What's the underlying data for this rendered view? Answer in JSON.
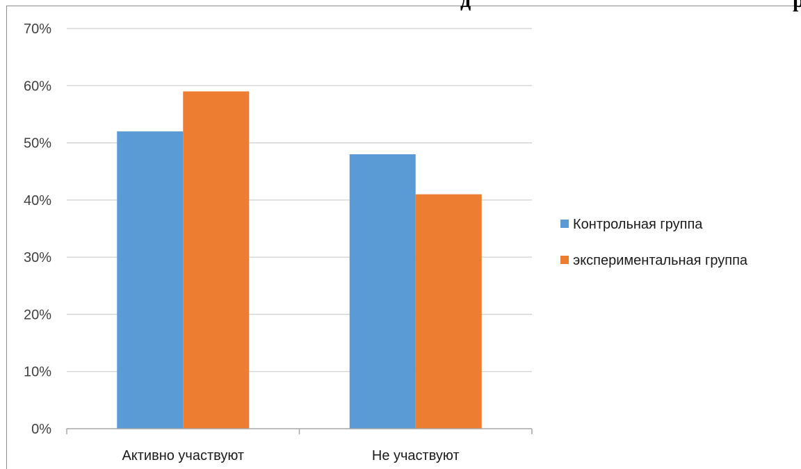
{
  "header_fragment": {
    "text": "д",
    "text_right": "р"
  },
  "chart_data": {
    "type": "bar",
    "categories": [
      "Активно участвуют",
      "Не участвуют"
    ],
    "series": [
      {
        "name": "Контрольная группа",
        "values": [
          52,
          48
        ],
        "color": "#5b9bd5"
      },
      {
        "name": "экспериментальная группа",
        "values": [
          59,
          41
        ],
        "color": "#ed7d31"
      }
    ],
    "y_ticks": [
      "0%",
      "10%",
      "20%",
      "30%",
      "40%",
      "50%",
      "60%",
      "70%"
    ],
    "ylim": [
      0,
      70
    ],
    "y_unit": "%",
    "grid": true,
    "legend": "right"
  }
}
